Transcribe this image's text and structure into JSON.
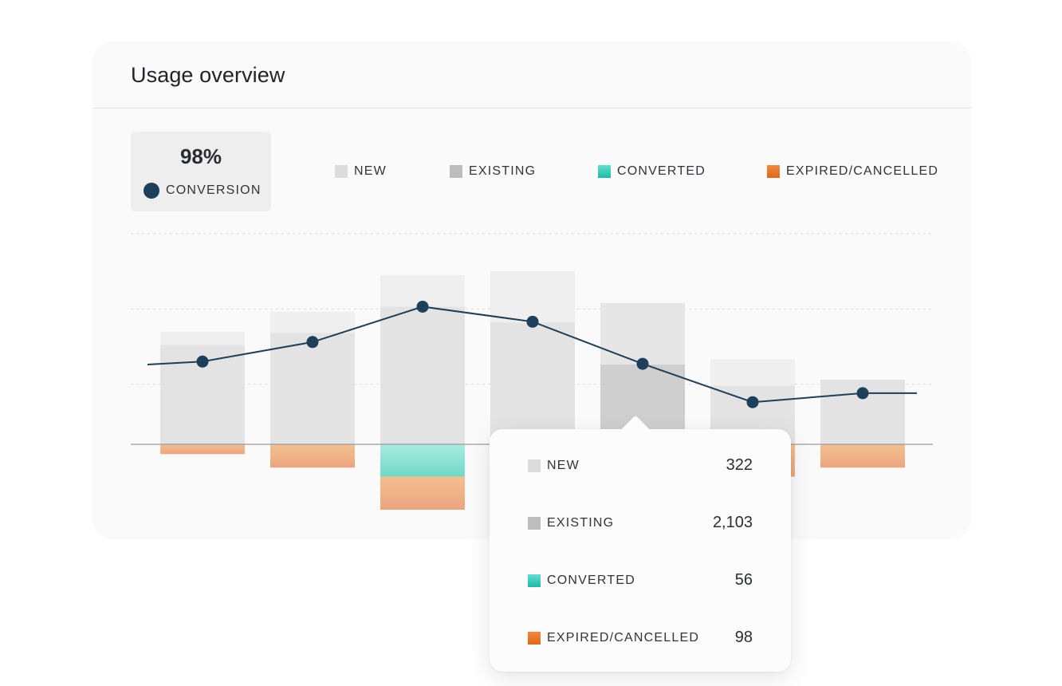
{
  "card": {
    "title": "Usage overview"
  },
  "kpi": {
    "value": "98%",
    "label": "CONVERSION",
    "dot_color": "#1e3f5a"
  },
  "legend": [
    {
      "label": "NEW",
      "color": "#dcdcdc"
    },
    {
      "label": "EXISTING",
      "color": "#bdbdbd"
    },
    {
      "label": "CONVERTED",
      "color": "#2fcab7"
    },
    {
      "label": "EXPIRED/CANCELLED",
      "color": "#e8711f"
    }
  ],
  "chart_data": {
    "type": "bar",
    "title": "",
    "xlabel": "",
    "ylabel": "",
    "ylim": [
      -100,
      280
    ],
    "grid": "horizontal dashed",
    "legend_position": "top",
    "categories": [
      "",
      "",
      "",
      "",
      "",
      "",
      ""
    ],
    "series": [
      {
        "name": "NEW",
        "kind": "stacked-positive",
        "values": [
          18,
          28,
          42,
          68,
          82,
          35,
          0
        ]
      },
      {
        "name": "EXISTING",
        "kind": "stacked-positive",
        "values": [
          132,
          148,
          183,
          162,
          106,
          78,
          86
        ]
      },
      {
        "name": "CONVERTED",
        "kind": "stacked-negative",
        "values": [
          0,
          0,
          43,
          0,
          0,
          0,
          0
        ]
      },
      {
        "name": "EXPIRED/CANCELLED",
        "kind": "stacked-negative",
        "values": [
          13,
          31,
          44,
          0,
          0,
          43,
          31
        ]
      },
      {
        "name": "CONVERSION",
        "kind": "line",
        "values": [
          110,
          136,
          183,
          163,
          107,
          56,
          68
        ]
      }
    ],
    "highlighted_index": 4
  },
  "tooltip": {
    "rows": [
      {
        "label": "NEW",
        "value": "322"
      },
      {
        "label": "EXISTING",
        "value": "2,103"
      },
      {
        "label": "CONVERTED",
        "value": "56"
      },
      {
        "label": "EXPIRED/CANCELLED",
        "value": "98"
      }
    ]
  }
}
